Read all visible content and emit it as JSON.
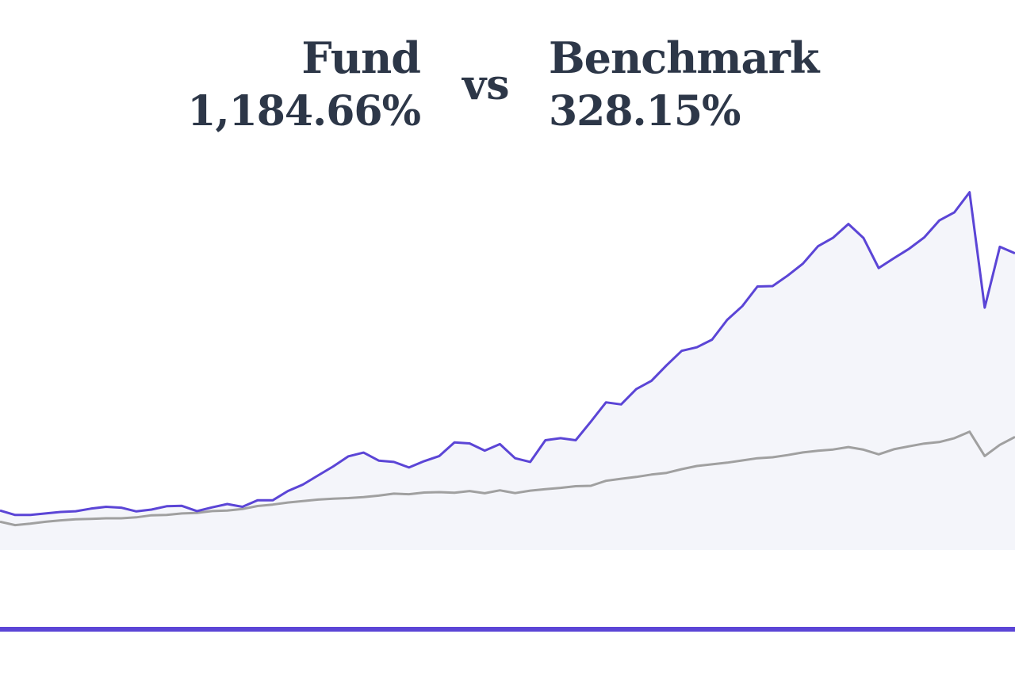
{
  "header": {
    "fund_label": "Fund",
    "fund_value": "1,184.66%",
    "vs_label": "vs",
    "benchmark_label": "Benchmark",
    "benchmark_value": "328.15%"
  },
  "colors": {
    "fund": "#5b45d6",
    "benchmark": "#a0a0a0",
    "area_fill": "#f4f5fa",
    "text": "#2d3748"
  },
  "chart_data": {
    "type": "line",
    "grid": false,
    "ylim": [
      -200,
      1800
    ],
    "area_below": "fund",
    "series": [
      {
        "name": "Fund",
        "values": [
          13,
          -11,
          -11,
          -3,
          5,
          9,
          23,
          33,
          28,
          8,
          18,
          36,
          38,
          10,
          30,
          48,
          33,
          68,
          68,
          118,
          153,
          202,
          251,
          305,
          325,
          282,
          275,
          245,
          279,
          307,
          380,
          375,
          336,
          371,
          295,
          275,
          392,
          403,
          392,
          492,
          596,
          585,
          668,
          712,
          796,
          874,
          893,
          934,
          1041,
          1115,
          1221,
          1223,
          1280,
          1344,
          1438,
          1484,
          1558,
          1482,
          1320,
          1373,
          1424,
          1485,
          1577,
          1621,
          1729,
          1107,
          1435,
          1400
        ]
      },
      {
        "name": "Benchmark",
        "values": [
          -48,
          -66,
          -58,
          -48,
          -40,
          -34,
          -32,
          -29,
          -29,
          -24,
          -13,
          -11,
          -3,
          0,
          10,
          13,
          21,
          37,
          45,
          56,
          64,
          72,
          77,
          80,
          85,
          93,
          104,
          101,
          110,
          112,
          109,
          118,
          106,
          122,
          107,
          120,
          128,
          135,
          144,
          146,
          173,
          184,
          194,
          207,
          216,
          236,
          253,
          262,
          271,
          283,
          295,
          300,
          312,
          326,
          335,
          342,
          355,
          341,
          316,
          343,
          359,
          374,
          382,
          403,
          438,
          307,
          367,
          410
        ]
      }
    ]
  }
}
